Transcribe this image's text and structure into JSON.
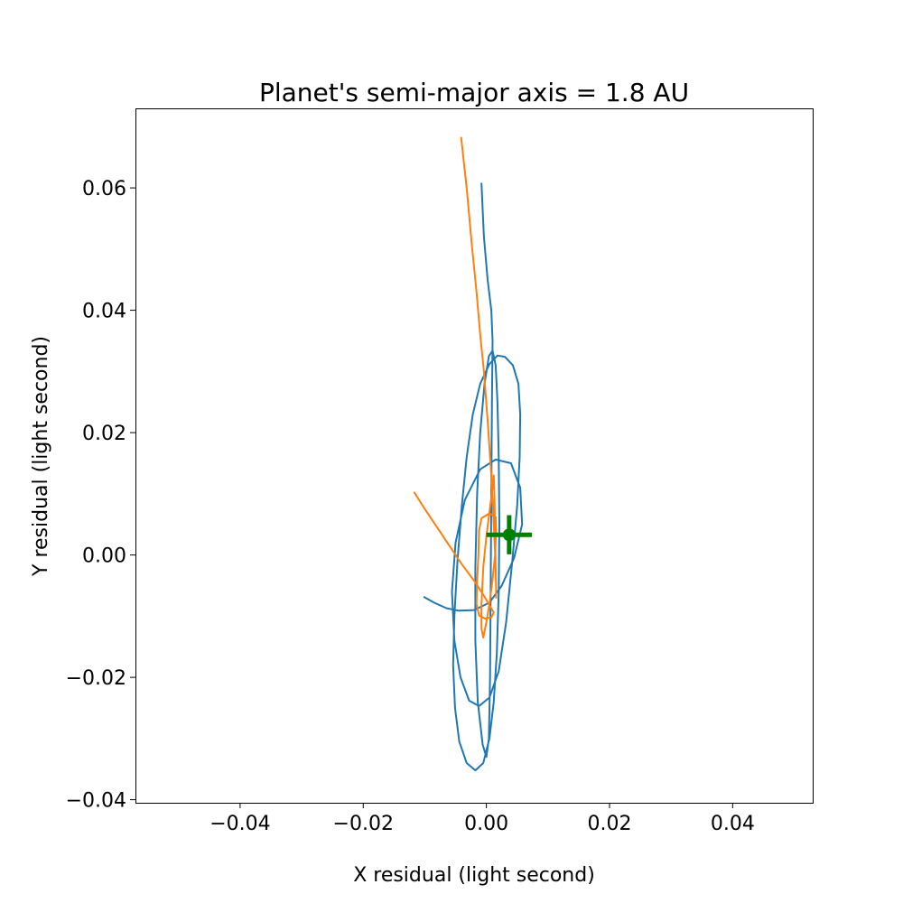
{
  "chart_data": {
    "type": "line",
    "title": "Planet's semi-major axis = 1.8 AU",
    "xlabel": "X residual (light second)",
    "ylabel": "Y residual (light second)",
    "xlim": [
      -0.057,
      0.053
    ],
    "ylim": [
      -0.0405,
      0.073
    ],
    "xticks": [
      {
        "value": -0.04,
        "label": "−0.04"
      },
      {
        "value": -0.02,
        "label": "−0.02"
      },
      {
        "value": 0.0,
        "label": "0.00"
      },
      {
        "value": 0.02,
        "label": "0.02"
      },
      {
        "value": 0.04,
        "label": "0.04"
      }
    ],
    "yticks": [
      {
        "value": -0.04,
        "label": "−0.04"
      },
      {
        "value": -0.02,
        "label": "−0.02"
      },
      {
        "value": 0.0,
        "label": "0.00"
      },
      {
        "value": 0.02,
        "label": "0.02"
      },
      {
        "value": 0.04,
        "label": "0.04"
      },
      {
        "value": 0.06,
        "label": "0.06"
      }
    ],
    "grid": false,
    "series": [
      {
        "color": "#1f77b4",
        "points": [
          [
            -0.0101,
            -0.0069
          ],
          [
            -0.0085,
            -0.0078
          ],
          [
            -0.0065,
            -0.0087
          ],
          [
            -0.0045,
            -0.0091
          ],
          [
            -0.002,
            -0.009
          ],
          [
            0.0005,
            -0.0078
          ],
          [
            0.0025,
            -0.005
          ],
          [
            0.0045,
            -0.0005
          ],
          [
            0.0058,
            0.005
          ],
          [
            0.0055,
            0.011
          ],
          [
            0.004,
            0.015
          ],
          [
            0.0015,
            0.0156
          ],
          [
            -0.001,
            0.014
          ],
          [
            -0.0035,
            0.009
          ],
          [
            -0.005,
            0.002
          ],
          [
            -0.0056,
            -0.006
          ],
          [
            -0.0052,
            -0.014
          ],
          [
            -0.0042,
            -0.02
          ],
          [
            -0.0028,
            -0.0238
          ],
          [
            -0.0012,
            -0.0247
          ],
          [
            0.0005,
            -0.0233
          ],
          [
            0.002,
            -0.019
          ],
          [
            0.0032,
            -0.011
          ],
          [
            0.0042,
            -0.001
          ],
          [
            0.005,
            0.008
          ],
          [
            0.0054,
            0.016
          ],
          [
            0.0055,
            0.023
          ],
          [
            0.0052,
            0.028
          ],
          [
            0.0043,
            0.031
          ],
          [
            0.003,
            0.0324
          ],
          [
            0.0018,
            0.0326
          ],
          [
            0.0005,
            0.0312
          ],
          [
            -0.001,
            0.028
          ],
          [
            -0.0022,
            0.023
          ],
          [
            -0.0032,
            0.016
          ],
          [
            -0.004,
            0.008
          ],
          [
            -0.0047,
            -0.001
          ],
          [
            -0.0052,
            -0.01
          ],
          [
            -0.0054,
            -0.018
          ],
          [
            -0.0051,
            -0.025
          ],
          [
            -0.0044,
            -0.0305
          ],
          [
            -0.0032,
            -0.034
          ],
          [
            -0.0018,
            -0.0352
          ],
          [
            -0.0005,
            -0.034
          ],
          [
            0.0005,
            -0.03
          ],
          [
            0.0012,
            -0.024
          ],
          [
            0.0017,
            -0.016
          ],
          [
            0.002,
            -0.006
          ],
          [
            0.0021,
            0.005
          ],
          [
            0.002,
            0.016
          ],
          [
            0.0018,
            0.025
          ],
          [
            0.0015,
            0.031
          ],
          [
            0.001,
            0.0334
          ],
          [
            0.0004,
            0.0325
          ],
          [
            -0.0003,
            0.028
          ],
          [
            -0.001,
            0.02
          ],
          [
            -0.0015,
            0.01
          ],
          [
            -0.0018,
            -0.002
          ],
          [
            -0.0018,
            -0.014
          ],
          [
            -0.0014,
            -0.024
          ],
          [
            -0.0006,
            -0.031
          ],
          [
            0.0,
            -0.033
          ],
          [
            0.0004,
            -0.03
          ],
          [
            0.0006,
            -0.02
          ],
          [
            0.0007,
            -0.005
          ],
          [
            0.0008,
            0.01
          ],
          [
            0.0009,
            0.025
          ],
          [
            0.001,
            0.035
          ],
          [
            0.0008,
            0.04
          ],
          [
            0.0002,
            0.045
          ],
          [
            -0.0004,
            0.052
          ],
          [
            -0.0008,
            0.0607
          ]
        ]
      },
      {
        "color": "#ff7f0e",
        "points": [
          [
            -0.0117,
            0.0102
          ],
          [
            -0.01,
            0.0075
          ],
          [
            -0.008,
            0.0045
          ],
          [
            -0.006,
            0.0015
          ],
          [
            -0.004,
            -0.0015
          ],
          [
            -0.002,
            -0.0042
          ],
          [
            -0.0005,
            -0.0065
          ],
          [
            0.0005,
            -0.0082
          ],
          [
            0.0012,
            -0.0094
          ],
          [
            0.0008,
            -0.0102
          ],
          [
            -0.0002,
            -0.0104
          ],
          [
            -0.0012,
            -0.0099
          ],
          [
            -0.0016,
            -0.008
          ],
          [
            -0.0015,
            -0.004
          ],
          [
            -0.0013,
            0.0
          ],
          [
            -0.0012,
            0.004
          ],
          [
            -0.0008,
            0.006
          ],
          [
            0.0005,
            0.0068
          ],
          [
            0.0015,
            0.0062
          ],
          [
            0.0016,
            0.004
          ],
          [
            0.0014,
            0.0
          ],
          [
            0.001,
            -0.004
          ],
          [
            0.0005,
            -0.008
          ],
          [
            0.0,
            -0.011
          ],
          [
            -0.0005,
            -0.0135
          ],
          [
            -0.0008,
            -0.012
          ],
          [
            -0.0008,
            -0.008
          ],
          [
            -0.0005,
            -0.002
          ],
          [
            0.0,
            0.003
          ],
          [
            0.0005,
            0.007
          ],
          [
            0.001,
            0.011
          ],
          [
            0.0012,
            0.013
          ],
          [
            0.0013,
            0.01
          ],
          [
            0.0014,
            0.004
          ],
          [
            0.0015,
            -0.002
          ],
          [
            0.0016,
            -0.007
          ],
          [
            0.0015,
            -0.002
          ],
          [
            0.0012,
            0.005
          ],
          [
            0.0008,
            0.013
          ],
          [
            0.0002,
            0.022
          ],
          [
            -0.0004,
            0.03
          ],
          [
            -0.001,
            0.036
          ],
          [
            -0.0016,
            0.043
          ],
          [
            -0.0024,
            0.051
          ],
          [
            -0.0032,
            0.06
          ],
          [
            -0.0041,
            0.0682
          ]
        ]
      }
    ],
    "marker": {
      "color": "#008000",
      "x": 0.0037,
      "y": 0.0033,
      "xerr": 0.0037,
      "yerr": 0.0032
    }
  }
}
